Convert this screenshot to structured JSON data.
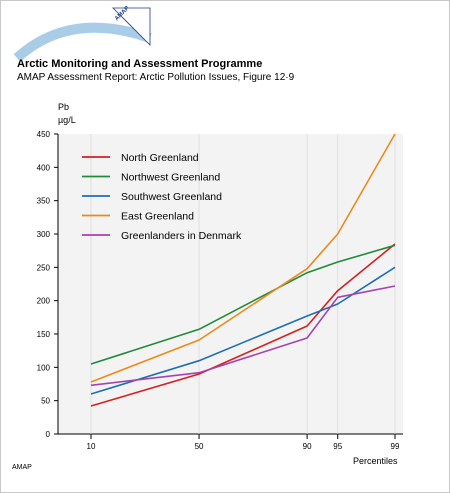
{
  "header": {
    "logo_text": "AMAP",
    "title": "Arctic Monitoring and Assessment Programme",
    "subtitle": "AMAP Assessment Report: Arctic Pollution Issues, Figure 12·9"
  },
  "footer": {
    "note": "AMAP"
  },
  "colors": {
    "North Greenland": "#d42020",
    "Northwest Greenland": "#1f8a3a",
    "Southwest Greenland": "#1e6fb0",
    "East Greenland": "#ea8a1a",
    "Greenlanders in Denmark": "#a443b0",
    "plot_background": "#f3f3f3",
    "logo_arc": "#a9cde6"
  },
  "chart_data": {
    "type": "line",
    "title": "",
    "ylabel_top": "Pb",
    "ylabel_unit": "µg/L",
    "xlabel": "Percentiles",
    "x": [
      10,
      50,
      90,
      95,
      99
    ],
    "x_tick_labels": [
      "10",
      "50",
      "90",
      "95",
      "99"
    ],
    "x_scale": "normal-probability (percentile)",
    "ylim": [
      0,
      450
    ],
    "y_ticks": [
      0,
      50,
      100,
      150,
      200,
      250,
      300,
      350,
      400,
      450
    ],
    "grid": false,
    "legend_position": "top-left",
    "series": [
      {
        "name": "North Greenland",
        "values": [
          42,
          90,
          162,
          215,
          285
        ]
      },
      {
        "name": "Northwest Greenland",
        "values": [
          105,
          157,
          242,
          258,
          283
        ]
      },
      {
        "name": "Southwest Greenland",
        "values": [
          60,
          110,
          177,
          195,
          250
        ]
      },
      {
        "name": "East Greenland",
        "values": [
          78,
          141,
          248,
          300,
          450
        ]
      },
      {
        "name": "Greenlanders in Denmark",
        "values": [
          73,
          92,
          144,
          205,
          222
        ]
      }
    ]
  }
}
